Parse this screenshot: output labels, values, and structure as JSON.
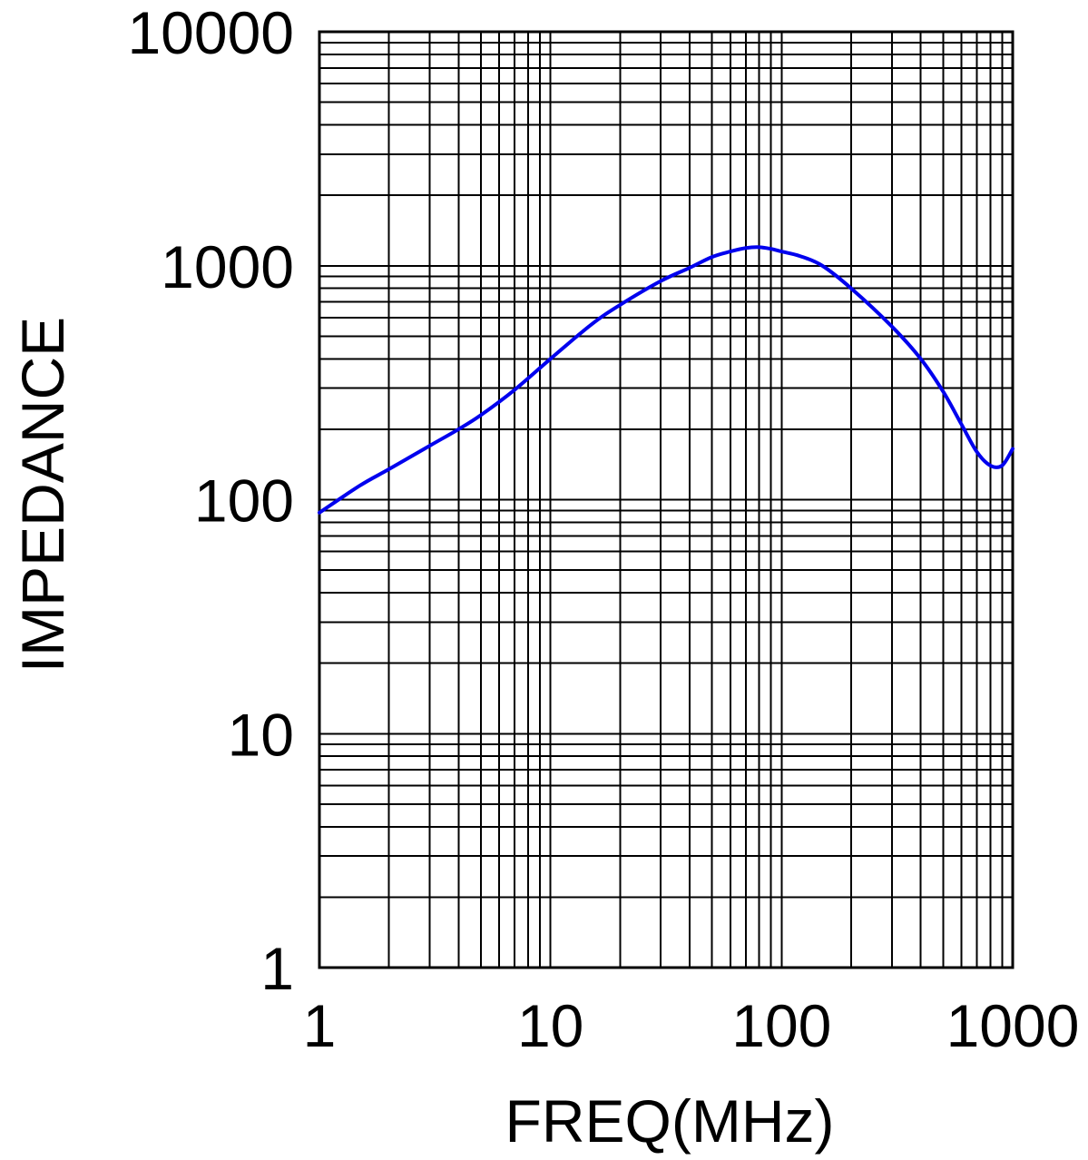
{
  "chart_data": {
    "type": "line",
    "title": "",
    "xlabel": "FREQ(MHz)",
    "ylabel": "IMPEDANCE",
    "xscale": "log",
    "yscale": "log",
    "xlim": [
      1,
      1000
    ],
    "ylim": [
      1,
      10000
    ],
    "grid": true,
    "x_ticks": [
      "1",
      "10",
      "100",
      "1000"
    ],
    "y_ticks": [
      "1",
      "10",
      "100",
      "1000",
      "10000"
    ],
    "series": [
      {
        "color": "#0000ee",
        "x": [
          1,
          1.5,
          2,
          3,
          4,
          5,
          7,
          10,
          15,
          20,
          30,
          40,
          50,
          60,
          70,
          80,
          90,
          100,
          120,
          150,
          200,
          300,
          400,
          500,
          600,
          700,
          800,
          900,
          1000
        ],
        "y": [
          88,
          115,
          135,
          170,
          200,
          230,
          295,
          400,
          560,
          680,
          860,
          980,
          1090,
          1150,
          1190,
          1200,
          1180,
          1150,
          1100,
          1000,
          800,
          550,
          400,
          290,
          210,
          160,
          140,
          140,
          165
        ]
      }
    ]
  }
}
